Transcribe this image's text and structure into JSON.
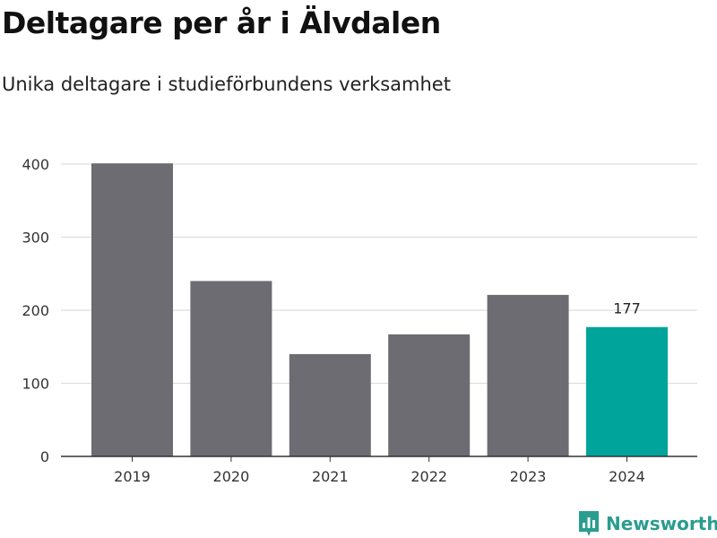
{
  "title": "Deltagare per år i Älvdalen",
  "subtitle": "Unika deltagare i studieförbundens verksamhet",
  "brand": {
    "name": "Newsworthy",
    "color": "#2a9d8f",
    "icon": "newsworthy-logo-icon"
  },
  "colors": {
    "bar_default": "#6d6c72",
    "bar_highlight": "#00a49a",
    "gridline": "#dddddd",
    "axis": "#333333"
  },
  "chart_data": {
    "type": "bar",
    "title": "Deltagare per år i Älvdalen",
    "subtitle": "Unika deltagare i studieförbundens verksamhet",
    "xlabel": "",
    "ylabel": "",
    "categories": [
      "2019",
      "2020",
      "2021",
      "2022",
      "2023",
      "2024"
    ],
    "values": [
      401,
      240,
      140,
      167,
      221,
      177
    ],
    "highlight_index": 5,
    "data_labels": [
      {
        "index": 5,
        "text": "177"
      }
    ],
    "ylim": [
      0,
      400
    ],
    "yticks": [
      0,
      100,
      200,
      300,
      400
    ],
    "ytick_labels": [
      "0",
      "100",
      "200",
      "300",
      "400"
    ],
    "grid": true,
    "legend": "none"
  }
}
